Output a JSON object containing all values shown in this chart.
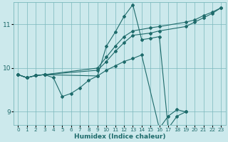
{
  "xlabel": "Humidex (Indice chaleur)",
  "bg_color": "#cce9ec",
  "grid_color": "#7ab8bc",
  "line_color": "#1e6b6b",
  "xlim": [
    -0.5,
    23.5
  ],
  "ylim": [
    8.7,
    11.5
  ],
  "yticks": [
    9,
    10,
    11
  ],
  "xticks": [
    0,
    1,
    2,
    3,
    4,
    5,
    6,
    7,
    8,
    9,
    10,
    11,
    12,
    13,
    14,
    15,
    16,
    17,
    18,
    19,
    20,
    21,
    22,
    23
  ],
  "series": [
    {
      "x": [
        0,
        1,
        2,
        3,
        9,
        10,
        11,
        12,
        13,
        15,
        16,
        19,
        20,
        21,
        22,
        23
      ],
      "y": [
        9.85,
        9.78,
        9.83,
        9.85,
        10.0,
        10.25,
        10.5,
        10.72,
        10.85,
        10.92,
        10.95,
        11.05,
        11.1,
        11.2,
        11.28,
        11.38
      ]
    },
    {
      "x": [
        0,
        1,
        2,
        3,
        9,
        10,
        11,
        12,
        13,
        15,
        16,
        19,
        20,
        21,
        22,
        23
      ],
      "y": [
        9.85,
        9.78,
        9.83,
        9.85,
        9.95,
        10.15,
        10.38,
        10.58,
        10.75,
        10.8,
        10.85,
        10.95,
        11.05,
        11.15,
        11.25,
        11.38
      ]
    },
    {
      "x": [
        0,
        1,
        2,
        3,
        9,
        10,
        11,
        12,
        13,
        14,
        15,
        16,
        17,
        18,
        19
      ],
      "y": [
        9.85,
        9.78,
        9.83,
        9.85,
        9.82,
        10.5,
        10.82,
        11.18,
        11.45,
        10.65,
        10.68,
        10.72,
        8.62,
        8.9,
        9.0
      ]
    },
    {
      "x": [
        0,
        1,
        2,
        3,
        4,
        5,
        6,
        7,
        8,
        9,
        10,
        11,
        12,
        13,
        14,
        16,
        17,
        18,
        19
      ],
      "y": [
        9.85,
        9.78,
        9.83,
        9.85,
        9.78,
        9.35,
        9.42,
        9.55,
        9.72,
        9.82,
        9.95,
        10.05,
        10.15,
        10.22,
        10.3,
        8.62,
        8.9,
        9.05,
        9.0
      ]
    }
  ]
}
